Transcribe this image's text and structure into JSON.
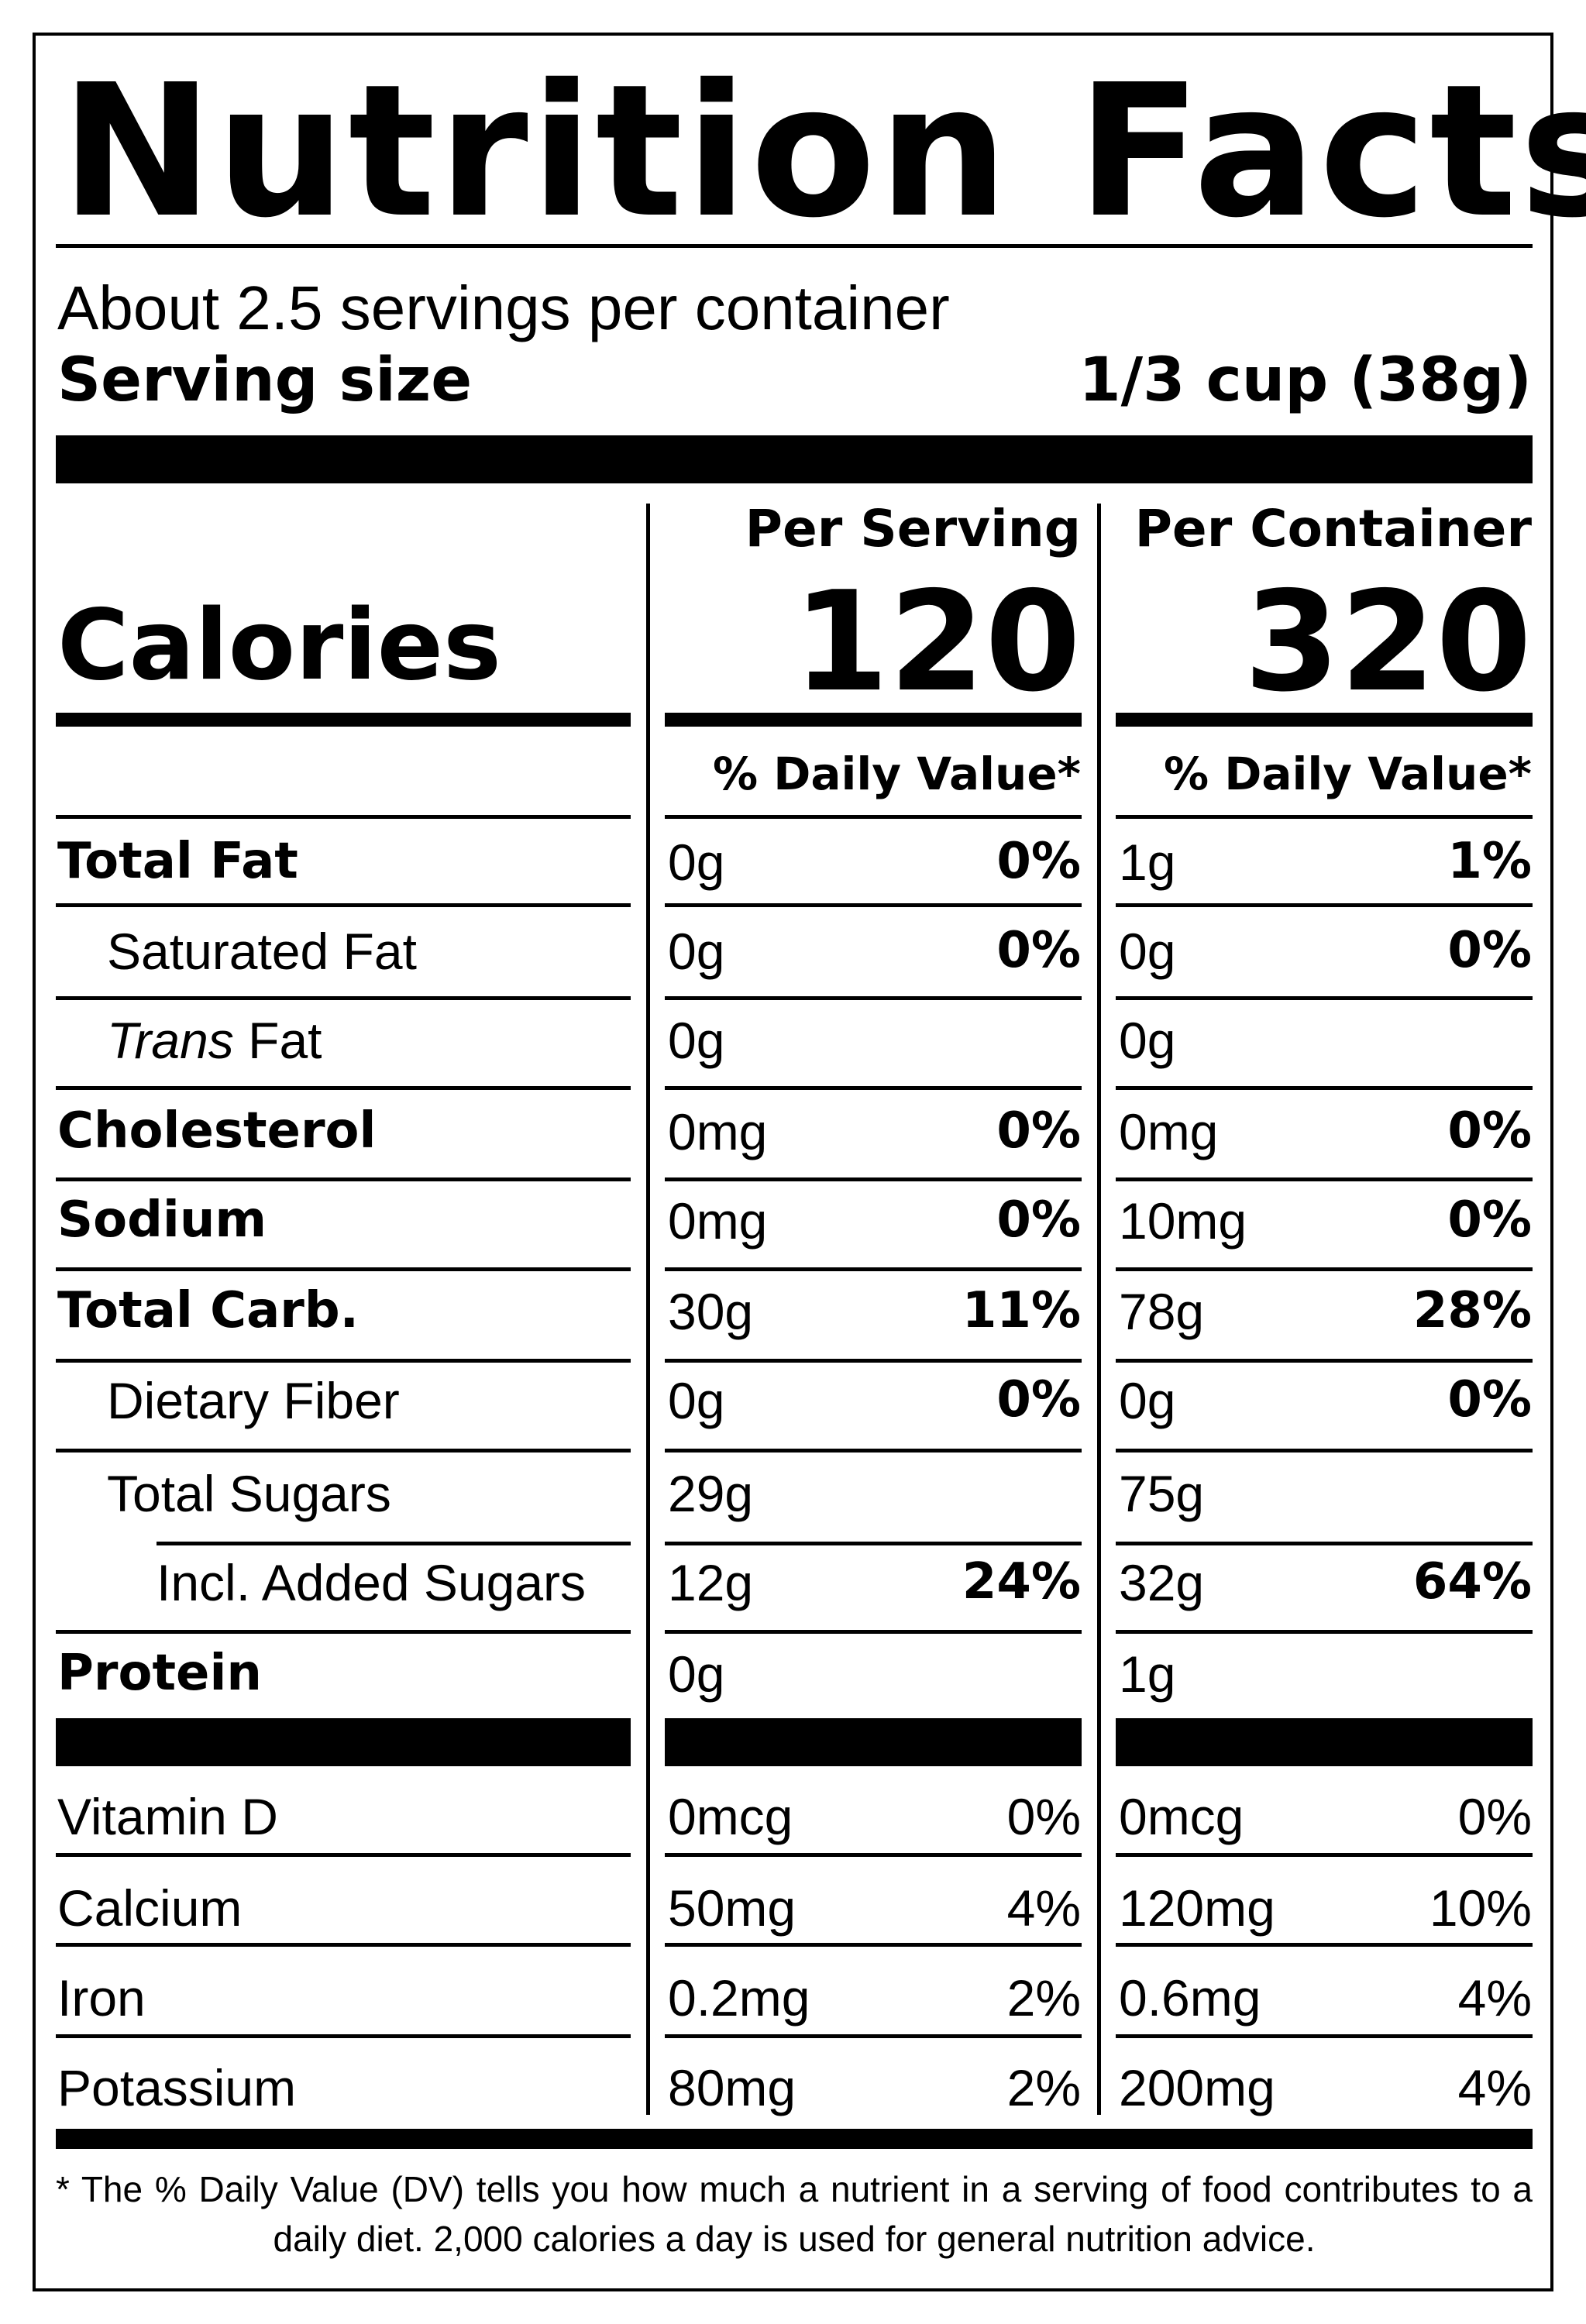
{
  "title": "Nutrition Facts",
  "servings_per_container": "About 2.5 servings per container",
  "serving_size_label": "Serving size",
  "serving_size_value": "1/3 cup (38g)",
  "calories_label": "Calories",
  "columns": [
    {
      "header": "Per Serving",
      "calories": "120",
      "dv_header": "% Daily Value*"
    },
    {
      "header": "Per Container",
      "calories": "320",
      "dv_header": "% Daily Value*"
    }
  ],
  "nutrients": [
    {
      "name": "Total Fat",
      "name_italic": "",
      "serving_amount": "0g",
      "serving_dv": "0%",
      "container_amount": "1g",
      "container_dv": "1%"
    },
    {
      "name": "Saturated Fat",
      "name_italic": "",
      "serving_amount": "0g",
      "serving_dv": "0%",
      "container_amount": "0g",
      "container_dv": "0%"
    },
    {
      "name": " Fat",
      "name_italic": "Trans",
      "serving_amount": "0g",
      "serving_dv": "",
      "container_amount": "0g",
      "container_dv": ""
    },
    {
      "name": "Cholesterol",
      "name_italic": "",
      "serving_amount": "0mg",
      "serving_dv": "0%",
      "container_amount": "0mg",
      "container_dv": "0%"
    },
    {
      "name": "Sodium",
      "name_italic": "",
      "serving_amount": "0mg",
      "serving_dv": "0%",
      "container_amount": "10mg",
      "container_dv": "0%"
    },
    {
      "name": "Total Carb.",
      "name_italic": "",
      "serving_amount": "30g",
      "serving_dv": "11%",
      "container_amount": "78g",
      "container_dv": "28%"
    },
    {
      "name": "Dietary Fiber",
      "name_italic": "",
      "serving_amount": "0g",
      "serving_dv": "0%",
      "container_amount": "0g",
      "container_dv": "0%"
    },
    {
      "name": "Total Sugars",
      "name_italic": "",
      "serving_amount": "29g",
      "serving_dv": "",
      "container_amount": "75g",
      "container_dv": ""
    },
    {
      "name": "Incl. Added Sugars",
      "name_italic": "",
      "serving_amount": "12g",
      "serving_dv": "24%",
      "container_amount": "32g",
      "container_dv": "64%"
    },
    {
      "name": "Protein",
      "name_italic": "",
      "serving_amount": "0g",
      "serving_dv": "",
      "container_amount": "1g",
      "container_dv": ""
    }
  ],
  "vitamins": [
    {
      "name": "Vitamin D",
      "serving_amount": "0mcg",
      "serving_dv": "0%",
      "container_amount": "0mcg",
      "container_dv": "0%"
    },
    {
      "name": "Calcium",
      "serving_amount": "50mg",
      "serving_dv": "4%",
      "container_amount": "120mg",
      "container_dv": "10%"
    },
    {
      "name": "Iron",
      "serving_amount": "0.2mg",
      "serving_dv": "2%",
      "container_amount": "0.6mg",
      "container_dv": "4%"
    },
    {
      "name": "Potassium",
      "serving_amount": "80mg",
      "serving_dv": "2%",
      "container_amount": "200mg",
      "container_dv": "4%"
    }
  ],
  "footnote": "* The % Daily Value (DV) tells you how much a nutrient in a serving of food contributes to a daily diet. 2,000 calories a day is used for general nutrition advice."
}
